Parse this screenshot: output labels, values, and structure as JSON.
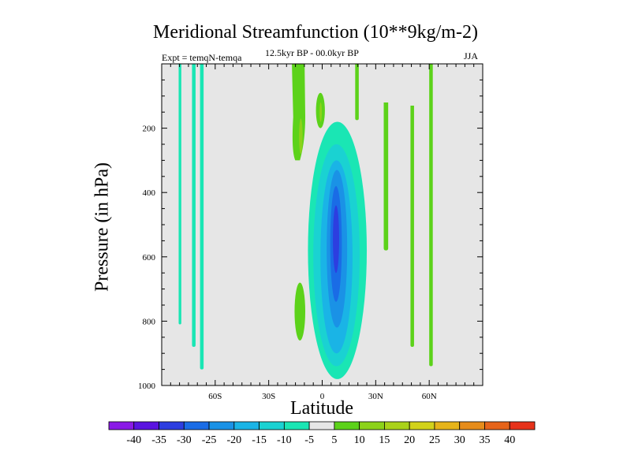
{
  "chart_data": {
    "type": "contour",
    "title": "Meridional Streamfunction (10**9kg/m-2)",
    "subtitle": "12.5kyr BP - 00.0kyr BP",
    "experiment": "Expt = temqN-temqa",
    "season": "JJA",
    "xlabel": "Latitude",
    "ylabel": "Pressure (in hPa)",
    "xlim": [
      -90,
      90
    ],
    "ylim": [
      0,
      1000
    ],
    "y_reversed": true,
    "x_ticks": [
      {
        "value": -60,
        "label": "60S"
      },
      {
        "value": -30,
        "label": "30S"
      },
      {
        "value": 0,
        "label": "0"
      },
      {
        "value": 30,
        "label": "30N"
      },
      {
        "value": 60,
        "label": "60N"
      }
    ],
    "y_ticks": [
      {
        "value": 200,
        "label": "200"
      },
      {
        "value": 400,
        "label": "400"
      },
      {
        "value": 600,
        "label": "600"
      },
      {
        "value": 800,
        "label": "800"
      },
      {
        "value": 1000,
        "label": "1000"
      }
    ],
    "background_color": "#e6e6e6",
    "contour_levels": [
      -40,
      -35,
      -30,
      -25,
      -20,
      -15,
      -10,
      -5,
      5,
      10,
      15,
      20,
      25,
      30,
      35,
      40
    ],
    "colorbar_colors": [
      "#8a1ae6",
      "#5a14e0",
      "#2d3ee0",
      "#1a6ce6",
      "#1a92e6",
      "#1ab4e6",
      "#1ad2d2",
      "#1ae6b4",
      "#e6e6e6",
      "#5cd21a",
      "#8cd21a",
      "#aad21a",
      "#d2d21a",
      "#e6b41a",
      "#e68c1a",
      "#e6641a",
      "#e6321a"
    ],
    "features": [
      {
        "label": "-5",
        "color": "#1ae6b4",
        "shape": "tube",
        "lat": [
          -80.5,
          -79
        ],
        "p": [
          0,
          810
        ]
      },
      {
        "label": "-5",
        "color": "#1ae6b4",
        "shape": "tube",
        "lat": [
          -73,
          -71
        ],
        "p": [
          0,
          880
        ]
      },
      {
        "label": "-5",
        "color": "#1ae6b4",
        "shape": "tube",
        "lat": [
          -68.5,
          -66.5
        ],
        "p": [
          0,
          950
        ]
      },
      {
        "label": "5",
        "color": "#5cd21a",
        "shape": "blob",
        "lat": [
          -17,
          -9.5
        ],
        "p": [
          0,
          300
        ]
      },
      {
        "label": "10",
        "color": "#8cd21a",
        "shape": "ellipse",
        "lat": [
          -13,
          -11
        ],
        "p": [
          170,
          280
        ]
      },
      {
        "label": "5",
        "color": "#5cd21a",
        "shape": "ellipse",
        "lat": [
          -3.5,
          1.5
        ],
        "p": [
          90,
          200
        ]
      },
      {
        "label": "10",
        "color": "#8cd21a",
        "shape": "ellipse",
        "lat": [
          -1.5,
          -0.2
        ],
        "p": [
          120,
          180
        ]
      },
      {
        "label": "5",
        "color": "#5cd21a",
        "shape": "tube",
        "lat": [
          18.5,
          20.5
        ],
        "p": [
          0,
          175
        ]
      },
      {
        "label": "5",
        "color": "#5cd21a",
        "shape": "ellipse",
        "lat": [
          -15.5,
          -9.5
        ],
        "p": [
          680,
          860
        ]
      },
      {
        "label": "5",
        "color": "#5cd21a",
        "shape": "tube",
        "lat": [
          34.5,
          37
        ],
        "p": [
          120,
          580
        ]
      },
      {
        "label": "5",
        "color": "#5cd21a",
        "shape": "tube",
        "lat": [
          49.5,
          51.5
        ],
        "p": [
          130,
          880
        ]
      },
      {
        "label": "5",
        "color": "#5cd21a",
        "shape": "tube",
        "lat": [
          60,
          62
        ],
        "p": [
          0,
          940
        ]
      },
      {
        "label": "-5",
        "color": "#1ae6b4",
        "shape": "ellipse",
        "lat": [
          -8,
          25
        ],
        "p": [
          180,
          980
        ]
      },
      {
        "label": "-10",
        "color": "#1ad2d2",
        "shape": "ellipse",
        "lat": [
          -5,
          21
        ],
        "p": [
          250,
          940
        ]
      },
      {
        "label": "-15",
        "color": "#1ab4e6",
        "shape": "ellipse",
        "lat": [
          -1,
          17
        ],
        "p": [
          300,
          900
        ]
      },
      {
        "label": "-20",
        "color": "#1a92e6",
        "shape": "ellipse",
        "lat": [
          2.5,
          14
        ],
        "p": [
          330,
          820
        ]
      },
      {
        "label": "-25",
        "color": "#1a6ce6",
        "shape": "ellipse",
        "lat": [
          4.5,
          11
        ],
        "p": [
          380,
          740
        ]
      },
      {
        "label": "-30",
        "color": "#2d3ee0",
        "shape": "ellipse",
        "lat": [
          6,
          9.5
        ],
        "p": [
          440,
          650
        ]
      }
    ]
  }
}
